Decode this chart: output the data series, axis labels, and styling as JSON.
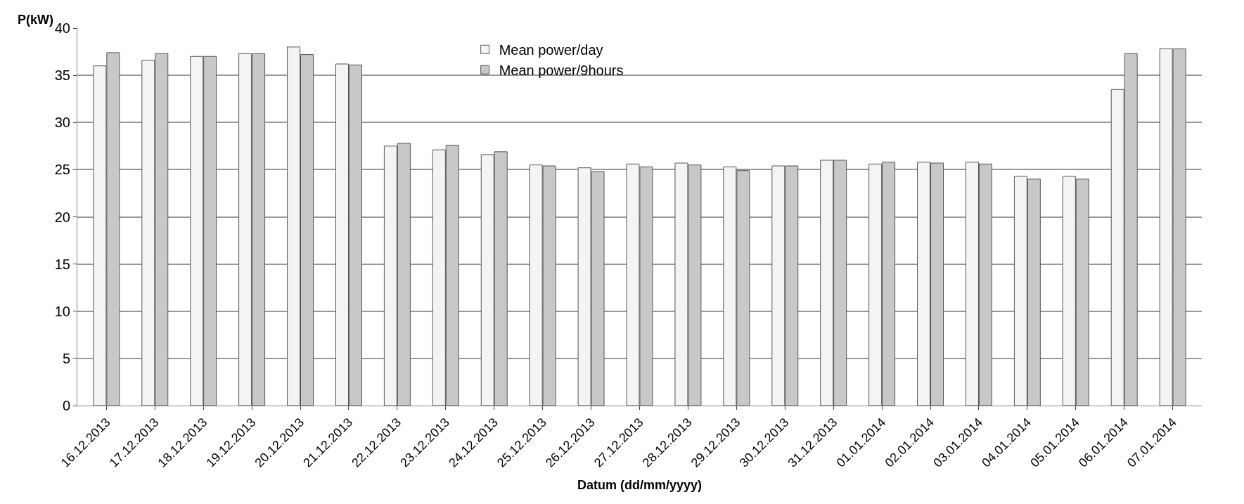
{
  "chart_data": {
    "type": "bar",
    "ylabel": "P(kW)",
    "xlabel": "Datum (dd/mm/yyyy)",
    "categories": [
      "16.12.2013",
      "17.12.2013",
      "18.12.2013",
      "19.12.2013",
      "20.12.2013",
      "21.12.2013",
      "22.12.2013",
      "23.12.2013",
      "24.12.2013",
      "25.12.2013",
      "26.12.2013",
      "27.12.2013",
      "28.12.2013",
      "29.12.2013",
      "30.12.2013",
      "31.12.2013",
      "01.01.2014",
      "02.01.2014",
      "03.01.2014",
      "04.01.2014",
      "05.01.2014",
      "06.01.2014",
      "07.01.2014"
    ],
    "series": [
      {
        "name": "Mean power/day",
        "color": "#f4f4f4",
        "values": [
          36.0,
          36.6,
          37.0,
          37.3,
          38.0,
          36.2,
          27.5,
          27.1,
          26.6,
          25.5,
          25.2,
          25.6,
          25.7,
          25.3,
          25.4,
          26.0,
          25.6,
          25.8,
          25.8,
          24.3,
          24.3,
          33.5,
          37.8
        ]
      },
      {
        "name": "Mean power/9hours",
        "color": "#c8c8c8",
        "values": [
          37.4,
          37.3,
          37.0,
          37.3,
          37.2,
          36.1,
          27.8,
          27.6,
          26.9,
          25.4,
          24.8,
          25.3,
          25.5,
          24.9,
          25.4,
          26.0,
          25.8,
          25.7,
          25.6,
          24.0,
          24.0,
          37.3,
          37.8
        ]
      }
    ],
    "ylim": [
      0,
      40
    ],
    "yticks": [
      0,
      5,
      10,
      15,
      20,
      25,
      30,
      35,
      40
    ],
    "grid": "y",
    "legend": "top"
  }
}
